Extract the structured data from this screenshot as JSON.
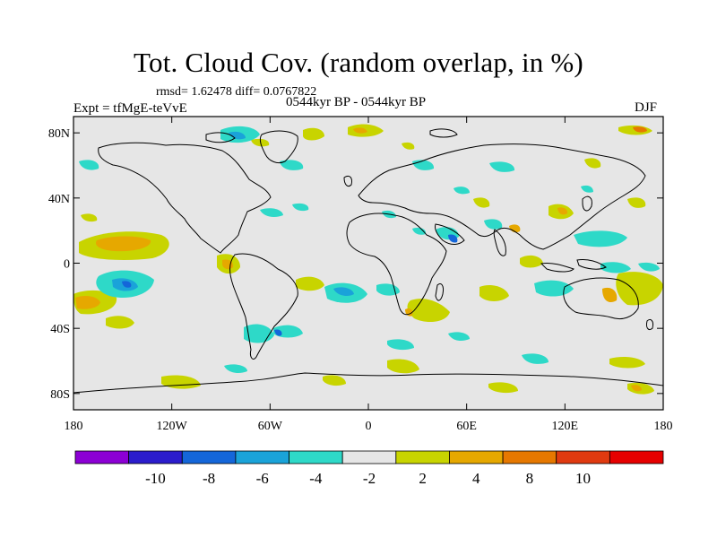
{
  "title": "Tot. Cloud Cov. (random overlap, in %)",
  "stats": "rmsd= 1.62478 diff= 0.0767822",
  "experiment": "Expt = tfMgE-teVvE",
  "period": "0544kyr BP - 0544kyr BP",
  "season": "DJF",
  "map": {
    "background_color": "#e6e6e6",
    "lon_range": [
      -180,
      180
    ],
    "lat_range": [
      -90,
      90
    ],
    "x_ticks": [
      {
        "value": -180,
        "label": "180"
      },
      {
        "value": -120,
        "label": "120W"
      },
      {
        "value": -60,
        "label": "60W"
      },
      {
        "value": 0,
        "label": "0"
      },
      {
        "value": 60,
        "label": "60E"
      },
      {
        "value": 120,
        "label": "120E"
      },
      {
        "value": 180,
        "label": "180"
      }
    ],
    "y_ticks": [
      {
        "value": 80,
        "label": "80N"
      },
      {
        "value": 40,
        "label": "40N"
      },
      {
        "value": 0,
        "label": "0"
      },
      {
        "value": -40,
        "label": "40S"
      },
      {
        "value": -80,
        "label": "80S"
      }
    ]
  },
  "colorbar": {
    "colors": [
      "#8c00d4",
      "#2b1ccc",
      "#1466d9",
      "#1aa3d9",
      "#2ed9c8",
      "#e6e6e6",
      "#c8d400",
      "#e6a800",
      "#e67800",
      "#e03a10",
      "#e60000"
    ],
    "labels": [
      "-10",
      "-8",
      "-6",
      "-4",
      "-2",
      "2",
      "4",
      "8",
      "10"
    ]
  }
}
